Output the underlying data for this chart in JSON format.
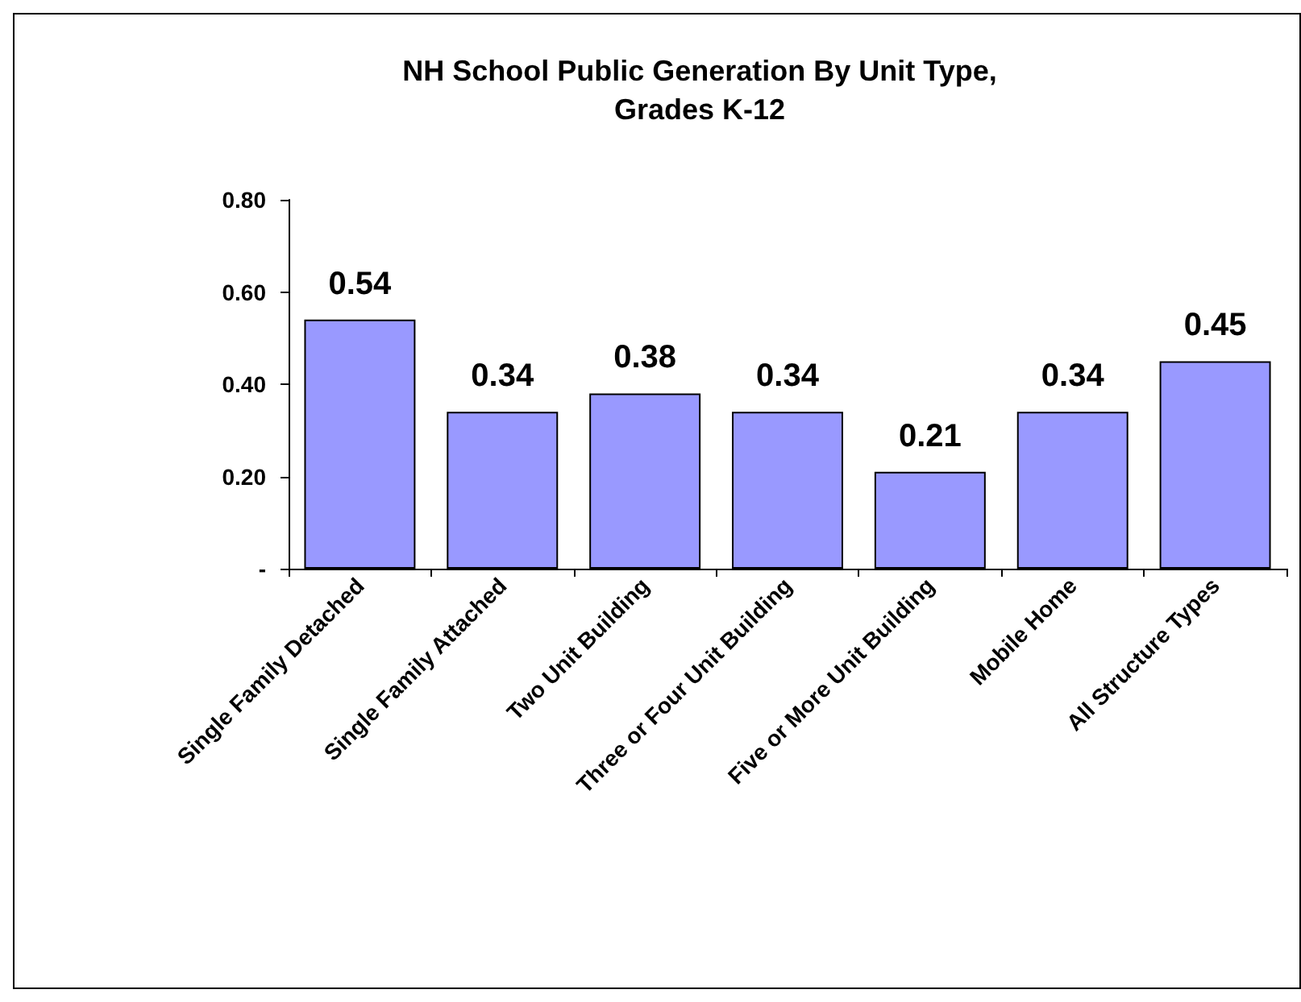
{
  "chart_data": {
    "type": "bar",
    "title": "NH School Public Generation By Unit Type,\nGrades K-12",
    "categories": [
      "Single Family Detached",
      "Single Family Attached",
      "Two Unit Building",
      "Three or Four Unit Building",
      "Five or More Unit Building",
      "Mobile Home",
      "All Structure Types"
    ],
    "values": [
      0.54,
      0.34,
      0.38,
      0.34,
      0.21,
      0.34,
      0.45
    ],
    "color": "#9999ff",
    "ylim": [
      0,
      0.8
    ],
    "yticks": [
      {
        "value": 0,
        "label": "-"
      },
      {
        "value": 0.2,
        "label": "0.20"
      },
      {
        "value": 0.4,
        "label": "0.40"
      },
      {
        "value": 0.6,
        "label": "0.60"
      },
      {
        "value": 0.8,
        "label": "0.80"
      }
    ],
    "data_labels": true,
    "grid": false
  }
}
